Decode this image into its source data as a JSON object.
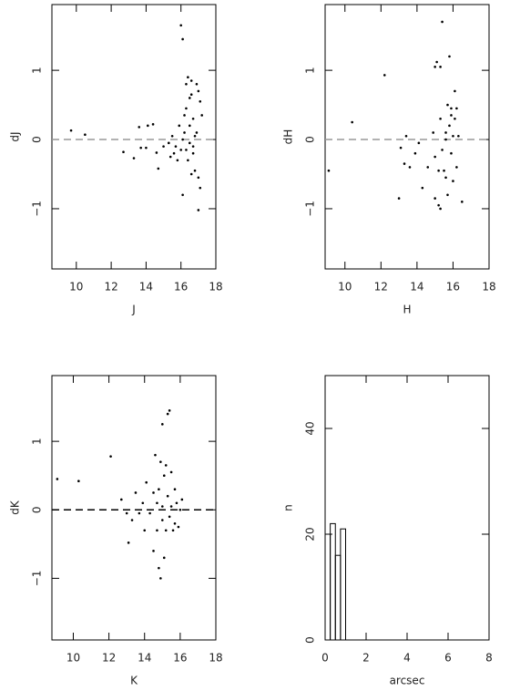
{
  "chart_data": [
    {
      "type": "scatter",
      "x_label": "J",
      "y_label": "dJ",
      "color": "#000000",
      "xlim": [
        8.6,
        18
      ],
      "ylim": [
        -1.87,
        1.95
      ],
      "xticks": [
        10,
        12,
        14,
        16,
        18
      ],
      "yticks": [
        {
          "value": -1,
          "label": "−1"
        },
        0,
        1
      ],
      "reference_line": 0,
      "reference_color": "#999999",
      "x": [
        9.7,
        10.5,
        12.7,
        13.3,
        13.6,
        13.7,
        14.0,
        14.1,
        14.4,
        14.6,
        14.7,
        15.0,
        15.3,
        15.4,
        15.5,
        15.7,
        15.8,
        15.9,
        16.0,
        16.1,
        16.1,
        16.1,
        16.2,
        16.2,
        16.3,
        16.3,
        16.4,
        16.4,
        16.5,
        16.5,
        16.5,
        16.6,
        16.6,
        16.6,
        16.7,
        16.7,
        16.8,
        16.8,
        16.9,
        16.9,
        17.0,
        17.0,
        17.0,
        17.1,
        17.1,
        17.2,
        16.0,
        16.3,
        16.7,
        15.6
      ],
      "values": [
        0.13,
        0.07,
        -0.18,
        -0.27,
        0.18,
        -0.12,
        -0.12,
        0.2,
        0.22,
        -0.19,
        -0.42,
        -0.1,
        -0.05,
        -0.25,
        0.05,
        -0.1,
        -0.3,
        0.2,
        1.65,
        1.45,
        0.0,
        -0.8,
        0.35,
        0.1,
        0.8,
        -0.15,
        0.9,
        -0.3,
        0.6,
        0.2,
        -0.05,
        0.65,
        -0.5,
        0.85,
        0.3,
        -0.2,
        0.05,
        -0.45,
        0.8,
        0.1,
        0.7,
        -0.55,
        -1.02,
        0.55,
        -0.7,
        0.35,
        -0.15,
        0.45,
        -0.1,
        -0.2
      ]
    },
    {
      "type": "scatter",
      "x_label": "H",
      "y_label": "dH",
      "color": "#000000",
      "xlim": [
        8.9,
        18
      ],
      "ylim": [
        -1.87,
        1.95
      ],
      "xticks": [
        10,
        12,
        14,
        16,
        18
      ],
      "yticks": [
        {
          "value": -1,
          "label": "−1"
        },
        0,
        1
      ],
      "reference_line": 0,
      "reference_color": "#999999",
      "x": [
        9.1,
        10.4,
        12.2,
        13.0,
        13.1,
        13.3,
        13.4,
        13.6,
        13.9,
        14.1,
        14.3,
        14.6,
        14.9,
        15.0,
        15.0,
        15.0,
        15.1,
        15.2,
        15.2,
        15.3,
        15.3,
        15.3,
        15.4,
        15.4,
        15.5,
        15.6,
        15.6,
        15.7,
        15.7,
        15.8,
        15.8,
        15.9,
        15.9,
        16.0,
        16.0,
        16.1,
        16.1,
        16.2,
        16.2,
        16.3,
        16.5,
        15.9,
        15.6
      ],
      "values": [
        -0.45,
        0.25,
        0.93,
        -0.85,
        -0.12,
        -0.35,
        0.05,
        -0.4,
        -0.2,
        -0.05,
        -0.7,
        -0.4,
        0.1,
        1.05,
        -0.25,
        -0.85,
        1.12,
        -0.45,
        -0.95,
        1.05,
        0.3,
        -1.0,
        1.7,
        -0.15,
        -0.45,
        0.0,
        -0.55,
        0.5,
        -0.8,
        1.2,
        0.2,
        0.45,
        -0.2,
        0.05,
        -0.6,
        0.3,
        0.7,
        0.45,
        -0.4,
        0.05,
        -0.9,
        0.35,
        0.1
      ]
    },
    {
      "type": "scatter",
      "x_label": "K",
      "y_label": "dK",
      "color": "#000000",
      "xlim": [
        8.8,
        18
      ],
      "ylim": [
        -1.9,
        1.96
      ],
      "xticks": [
        10,
        12,
        14,
        16,
        18
      ],
      "yticks": [
        {
          "value": -1,
          "label": "−1"
        },
        0,
        1
      ],
      "reference_line": 0,
      "reference_color": "#000000",
      "x": [
        9.1,
        10.3,
        12.1,
        12.7,
        13.0,
        13.1,
        13.3,
        13.5,
        13.7,
        13.9,
        14.0,
        14.1,
        14.3,
        14.5,
        14.6,
        14.7,
        14.7,
        14.8,
        14.8,
        14.9,
        14.9,
        15.0,
        15.0,
        15.1,
        15.1,
        15.2,
        15.2,
        15.3,
        15.3,
        15.4,
        15.4,
        15.5,
        15.5,
        15.6,
        15.7,
        15.7,
        15.8,
        15.9,
        16.0,
        16.1,
        14.5,
        15.0
      ],
      "values": [
        0.45,
        0.42,
        0.78,
        0.15,
        -0.05,
        -0.48,
        -0.15,
        0.25,
        -0.05,
        0.1,
        -0.3,
        0.4,
        -0.05,
        -0.6,
        0.8,
        0.1,
        -0.3,
        -0.85,
        0.3,
        -1.0,
        0.7,
        1.25,
        -0.15,
        -0.7,
        0.5,
        0.65,
        -0.3,
        1.4,
        0.2,
        1.45,
        -0.1,
        0.55,
        0.05,
        -0.3,
        0.3,
        -0.2,
        0.1,
        -0.25,
        0.0,
        0.15,
        0.25,
        0.05
      ]
    },
    {
      "type": "histogram",
      "x_label": "arcsec",
      "y_label": "n",
      "color": "#000000",
      "xlim": [
        0,
        8
      ],
      "ylim": [
        0,
        50
      ],
      "xticks": [
        0,
        2,
        4,
        6,
        8
      ],
      "yticks": [
        0,
        20,
        40
      ],
      "bins": [
        0,
        0.25,
        0.5,
        0.75,
        1.0
      ],
      "values": [
        20,
        22,
        16,
        21
      ]
    }
  ]
}
